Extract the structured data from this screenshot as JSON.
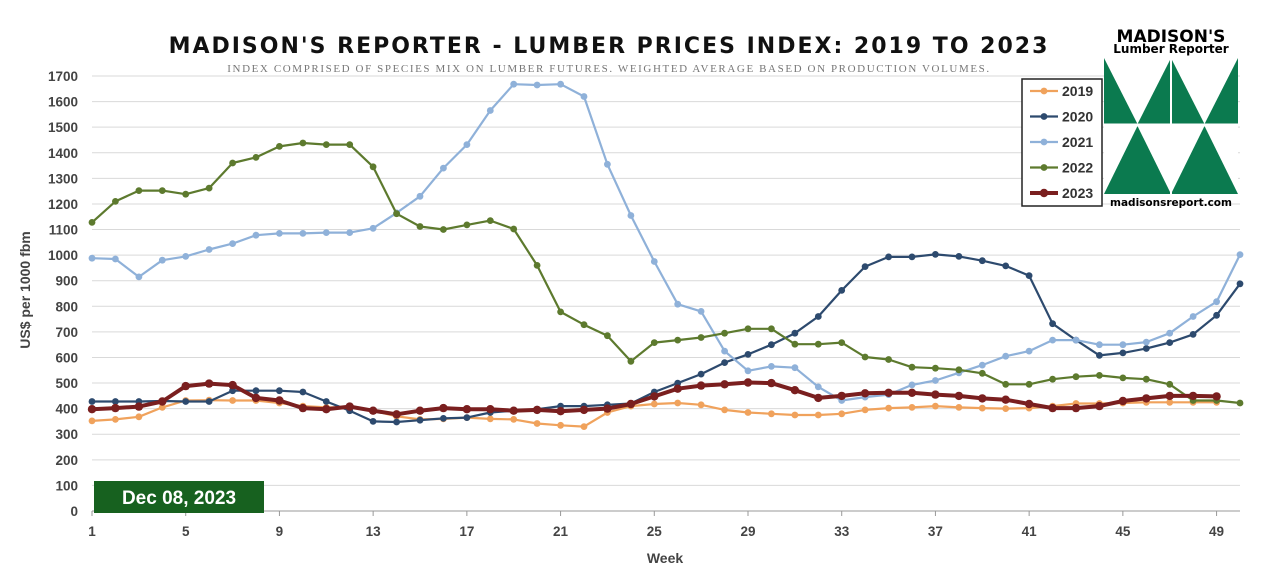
{
  "chart_data": {
    "type": "line",
    "title": "MADISON'S REPORTER - LUMBER PRICES INDEX: 2019 TO 2023",
    "subtitle": "INDEX COMPRISED OF SPECIES MIX ON LUMBER FUTURES. WEIGHTED AVERAGE BASED ON PRODUCTION VOLUMES.",
    "xlabel": "Week",
    "ylabel": "US$ per 1000 fbm",
    "xlim": [
      1,
      50
    ],
    "ylim": [
      0,
      1700
    ],
    "x_ticks": [
      1,
      5,
      9,
      13,
      17,
      21,
      25,
      29,
      33,
      37,
      41,
      45,
      49
    ],
    "y_ticks": [
      0,
      100,
      200,
      300,
      400,
      500,
      600,
      700,
      800,
      900,
      1000,
      1100,
      1200,
      1300,
      1400,
      1500,
      1600,
      1700
    ],
    "grid": "horizontal",
    "legend_position": "top-right",
    "series": [
      {
        "name": "2019",
        "color": "#f0a25c",
        "x": [
          1,
          2,
          3,
          4,
          5,
          6,
          7,
          8,
          9,
          10,
          11,
          12,
          13,
          14,
          15,
          16,
          17,
          18,
          19,
          20,
          21,
          22,
          23,
          24,
          25,
          26,
          27,
          28,
          29,
          30,
          31,
          32,
          33,
          34,
          35,
          36,
          37,
          38,
          39,
          40,
          41,
          42,
          43,
          44,
          45,
          46,
          47,
          48,
          49
        ],
        "values": [
          352,
          358,
          368,
          405,
          432,
          433,
          432,
          432,
          422,
          410,
          405,
          405,
          392,
          370,
          358,
          360,
          365,
          360,
          358,
          342,
          335,
          330,
          385,
          410,
          418,
          422,
          415,
          395,
          385,
          380,
          375,
          375,
          380,
          395,
          402,
          405,
          410,
          405,
          402,
          400,
          402,
          410,
          420,
          420,
          422,
          425,
          425,
          425,
          425
        ]
      },
      {
        "name": "2020",
        "color": "#2d4a6e",
        "x": [
          1,
          2,
          3,
          4,
          5,
          6,
          7,
          8,
          9,
          10,
          11,
          12,
          13,
          14,
          15,
          16,
          17,
          18,
          19,
          20,
          21,
          22,
          23,
          24,
          25,
          26,
          27,
          28,
          29,
          30,
          31,
          32,
          33,
          34,
          35,
          36,
          37,
          38,
          39,
          40,
          41,
          42,
          43,
          44,
          45,
          46,
          47,
          48,
          49,
          50
        ],
        "values": [
          428,
          428,
          428,
          430,
          428,
          428,
          470,
          470,
          470,
          465,
          428,
          392,
          350,
          348,
          355,
          362,
          365,
          385,
          392,
          398,
          410,
          410,
          415,
          420,
          465,
          500,
          535,
          580,
          612,
          650,
          695,
          760,
          862,
          955,
          993,
          993,
          1003,
          995,
          978,
          958,
          920,
          732,
          668,
          608,
          618,
          635,
          658,
          690,
          765,
          888
        ]
      },
      {
        "name": "2021",
        "color": "#8fb1d9",
        "x": [
          1,
          2,
          3,
          4,
          5,
          6,
          7,
          8,
          9,
          10,
          11,
          12,
          13,
          14,
          15,
          16,
          17,
          18,
          19,
          20,
          21,
          22,
          23,
          24,
          25,
          26,
          27,
          28,
          29,
          30,
          31,
          32,
          33,
          34,
          35,
          36,
          37,
          38,
          39,
          40,
          41,
          42,
          43,
          44,
          45,
          46,
          47,
          48,
          49,
          50
        ],
        "values": [
          988,
          985,
          915,
          980,
          995,
          1022,
          1045,
          1078,
          1085,
          1085,
          1088,
          1088,
          1105,
          1165,
          1230,
          1340,
          1432,
          1565,
          1668,
          1665,
          1668,
          1620,
          1355,
          1155,
          975,
          808,
          780,
          625,
          548,
          565,
          560,
          485,
          432,
          445,
          455,
          493,
          510,
          540,
          570,
          605,
          625,
          668,
          668,
          650,
          650,
          660,
          695,
          760,
          818,
          1002
        ]
      },
      {
        "name": "2022",
        "color": "#5d7a2e",
        "x": [
          1,
          2,
          3,
          4,
          5,
          6,
          7,
          8,
          9,
          10,
          11,
          12,
          13,
          14,
          15,
          16,
          17,
          18,
          19,
          20,
          21,
          22,
          23,
          24,
          25,
          26,
          27,
          28,
          29,
          30,
          31,
          32,
          33,
          34,
          35,
          36,
          37,
          38,
          39,
          40,
          41,
          42,
          43,
          44,
          45,
          46,
          47,
          48,
          49,
          50
        ],
        "values": [
          1128,
          1210,
          1252,
          1252,
          1238,
          1262,
          1360,
          1382,
          1425,
          1438,
          1432,
          1432,
          1345,
          1162,
          1112,
          1100,
          1118,
          1135,
          1102,
          960,
          778,
          728,
          685,
          585,
          658,
          668,
          678,
          695,
          712,
          712,
          652,
          652,
          658,
          602,
          592,
          562,
          558,
          552,
          538,
          495,
          495,
          515,
          525,
          530,
          520,
          515,
          495,
          432,
          432,
          422
        ]
      },
      {
        "name": "2023",
        "color": "#7a1f1f",
        "x": [
          1,
          2,
          3,
          4,
          5,
          6,
          7,
          8,
          9,
          10,
          11,
          12,
          13,
          14,
          15,
          16,
          17,
          18,
          19,
          20,
          21,
          22,
          23,
          24,
          25,
          26,
          27,
          28,
          29,
          30,
          31,
          32,
          33,
          34,
          35,
          36,
          37,
          38,
          39,
          40,
          41,
          42,
          43,
          44,
          45,
          46,
          47,
          48,
          49
        ],
        "values": [
          398,
          402,
          408,
          428,
          488,
          498,
          492,
          442,
          432,
          402,
          398,
          408,
          392,
          378,
          392,
          402,
          398,
          398,
          392,
          395,
          390,
          395,
          400,
          418,
          448,
          478,
          490,
          495,
          502,
          500,
          472,
          442,
          450,
          460,
          462,
          462,
          455,
          450,
          440,
          435,
          418,
          402,
          402,
          410,
          430,
          440,
          450,
          450,
          448
        ]
      }
    ]
  },
  "legend": {
    "items": [
      {
        "label": "2019",
        "color": "#f0a25c"
      },
      {
        "label": "2020",
        "color": "#2d4a6e"
      },
      {
        "label": "2021",
        "color": "#8fb1d9"
      },
      {
        "label": "2022",
        "color": "#5d7a2e"
      },
      {
        "label": "2023",
        "color": "#7a1f1f"
      }
    ]
  },
  "date_badge": {
    "text": "Dec 08, 2023",
    "color": "#17611f"
  },
  "logo": {
    "line1": "MADISON'S",
    "line2": "Lumber Reporter",
    "url": "madisonsreport.com",
    "brand_color": "#0b7a4f"
  }
}
